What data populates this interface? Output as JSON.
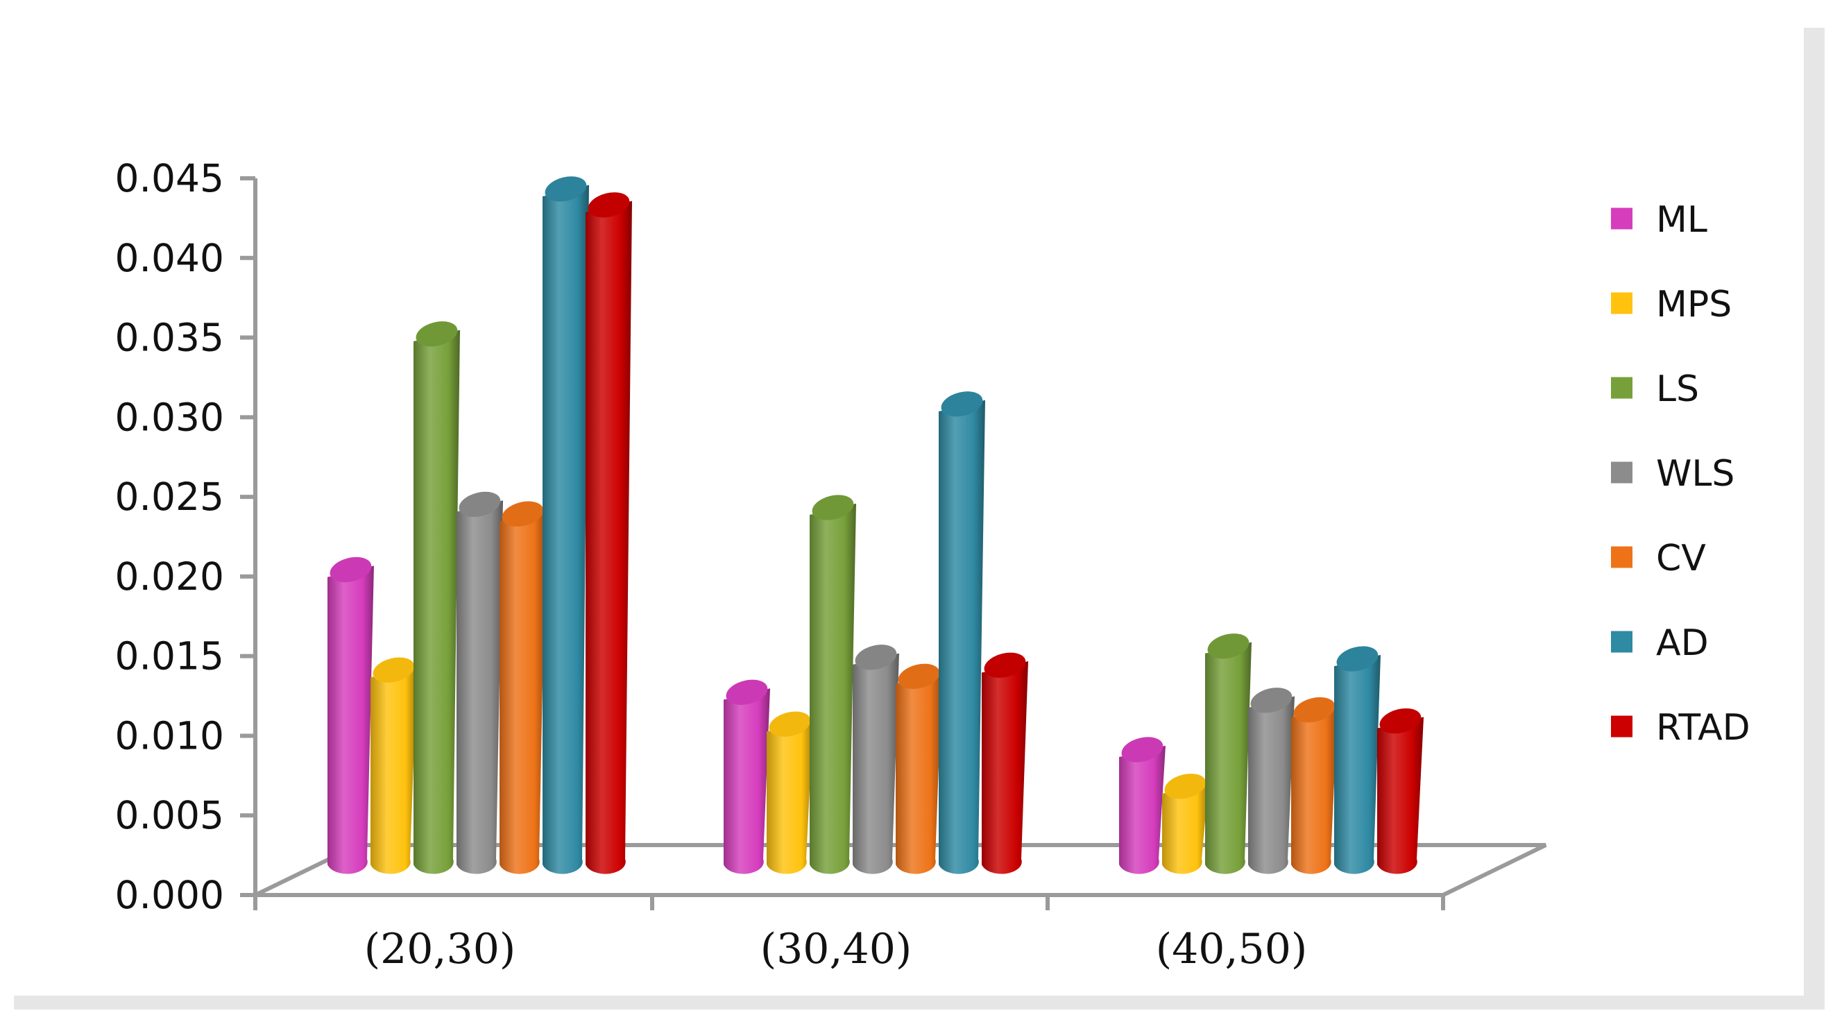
{
  "chart_data": {
    "type": "bar",
    "categories": [
      "(20,30)",
      "(30,40)",
      "(40,50)"
    ],
    "series": [
      {
        "name": "ML",
        "color": "#d63dbd",
        "values": [
          0.0185,
          0.0108,
          0.0072
        ]
      },
      {
        "name": "MPS",
        "color": "#ffc20e",
        "values": [
          0.0122,
          0.0088,
          0.0049
        ]
      },
      {
        "name": "LS",
        "color": "#77a03a",
        "values": [
          0.0333,
          0.0224,
          0.0137
        ]
      },
      {
        "name": "WLS",
        "color": "#8c8c8c",
        "values": [
          0.0226,
          0.013,
          0.0103
        ]
      },
      {
        "name": "CV",
        "color": "#ee7318",
        "values": [
          0.022,
          0.0118,
          0.0097
        ]
      },
      {
        "name": "AD",
        "color": "#2f8aa3",
        "values": [
          0.0424,
          0.0289,
          0.0129
        ]
      },
      {
        "name": "RTAD",
        "color": "#cc0000",
        "values": [
          0.0414,
          0.0125,
          0.009
        ]
      }
    ],
    "yticks": [
      "0.000",
      "0.005",
      "0.010",
      "0.015",
      "0.020",
      "0.025",
      "0.030",
      "0.035",
      "0.040",
      "0.045"
    ],
    "ylim": [
      0,
      0.045
    ],
    "legend": "right",
    "grid": false,
    "style": "3d-cylinder"
  }
}
